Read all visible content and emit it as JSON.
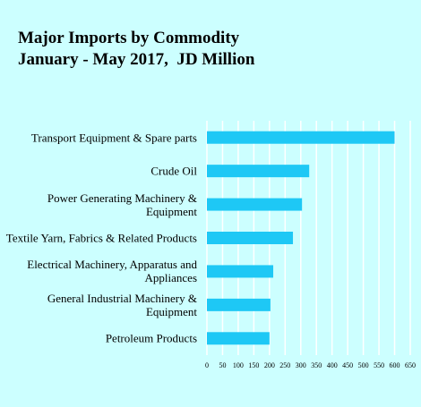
{
  "chart_data": {
    "type": "bar",
    "orientation": "horizontal",
    "title": "Major Imports by Commodity",
    "subtitle": "January - May 2017,  JD Million",
    "categories": [
      "Transport Equipment & Spare parts",
      "Crude Oil",
      "Power Generating Machinery & Equipment",
      "Textile Yarn, Fabrics & Related Products",
      "Electrical Machinery, Apparatus and Appliances",
      "General Industrial Machinery & Equipment",
      "Petroleum Products"
    ],
    "values": [
      600,
      327,
      304,
      275,
      212,
      203,
      200
    ],
    "color": "#1ec8f5",
    "xlim": [
      0,
      650
    ],
    "xticks": [
      0,
      50,
      100,
      150,
      200,
      250,
      300,
      350,
      400,
      450,
      500,
      550,
      600,
      650
    ],
    "grid": true
  }
}
